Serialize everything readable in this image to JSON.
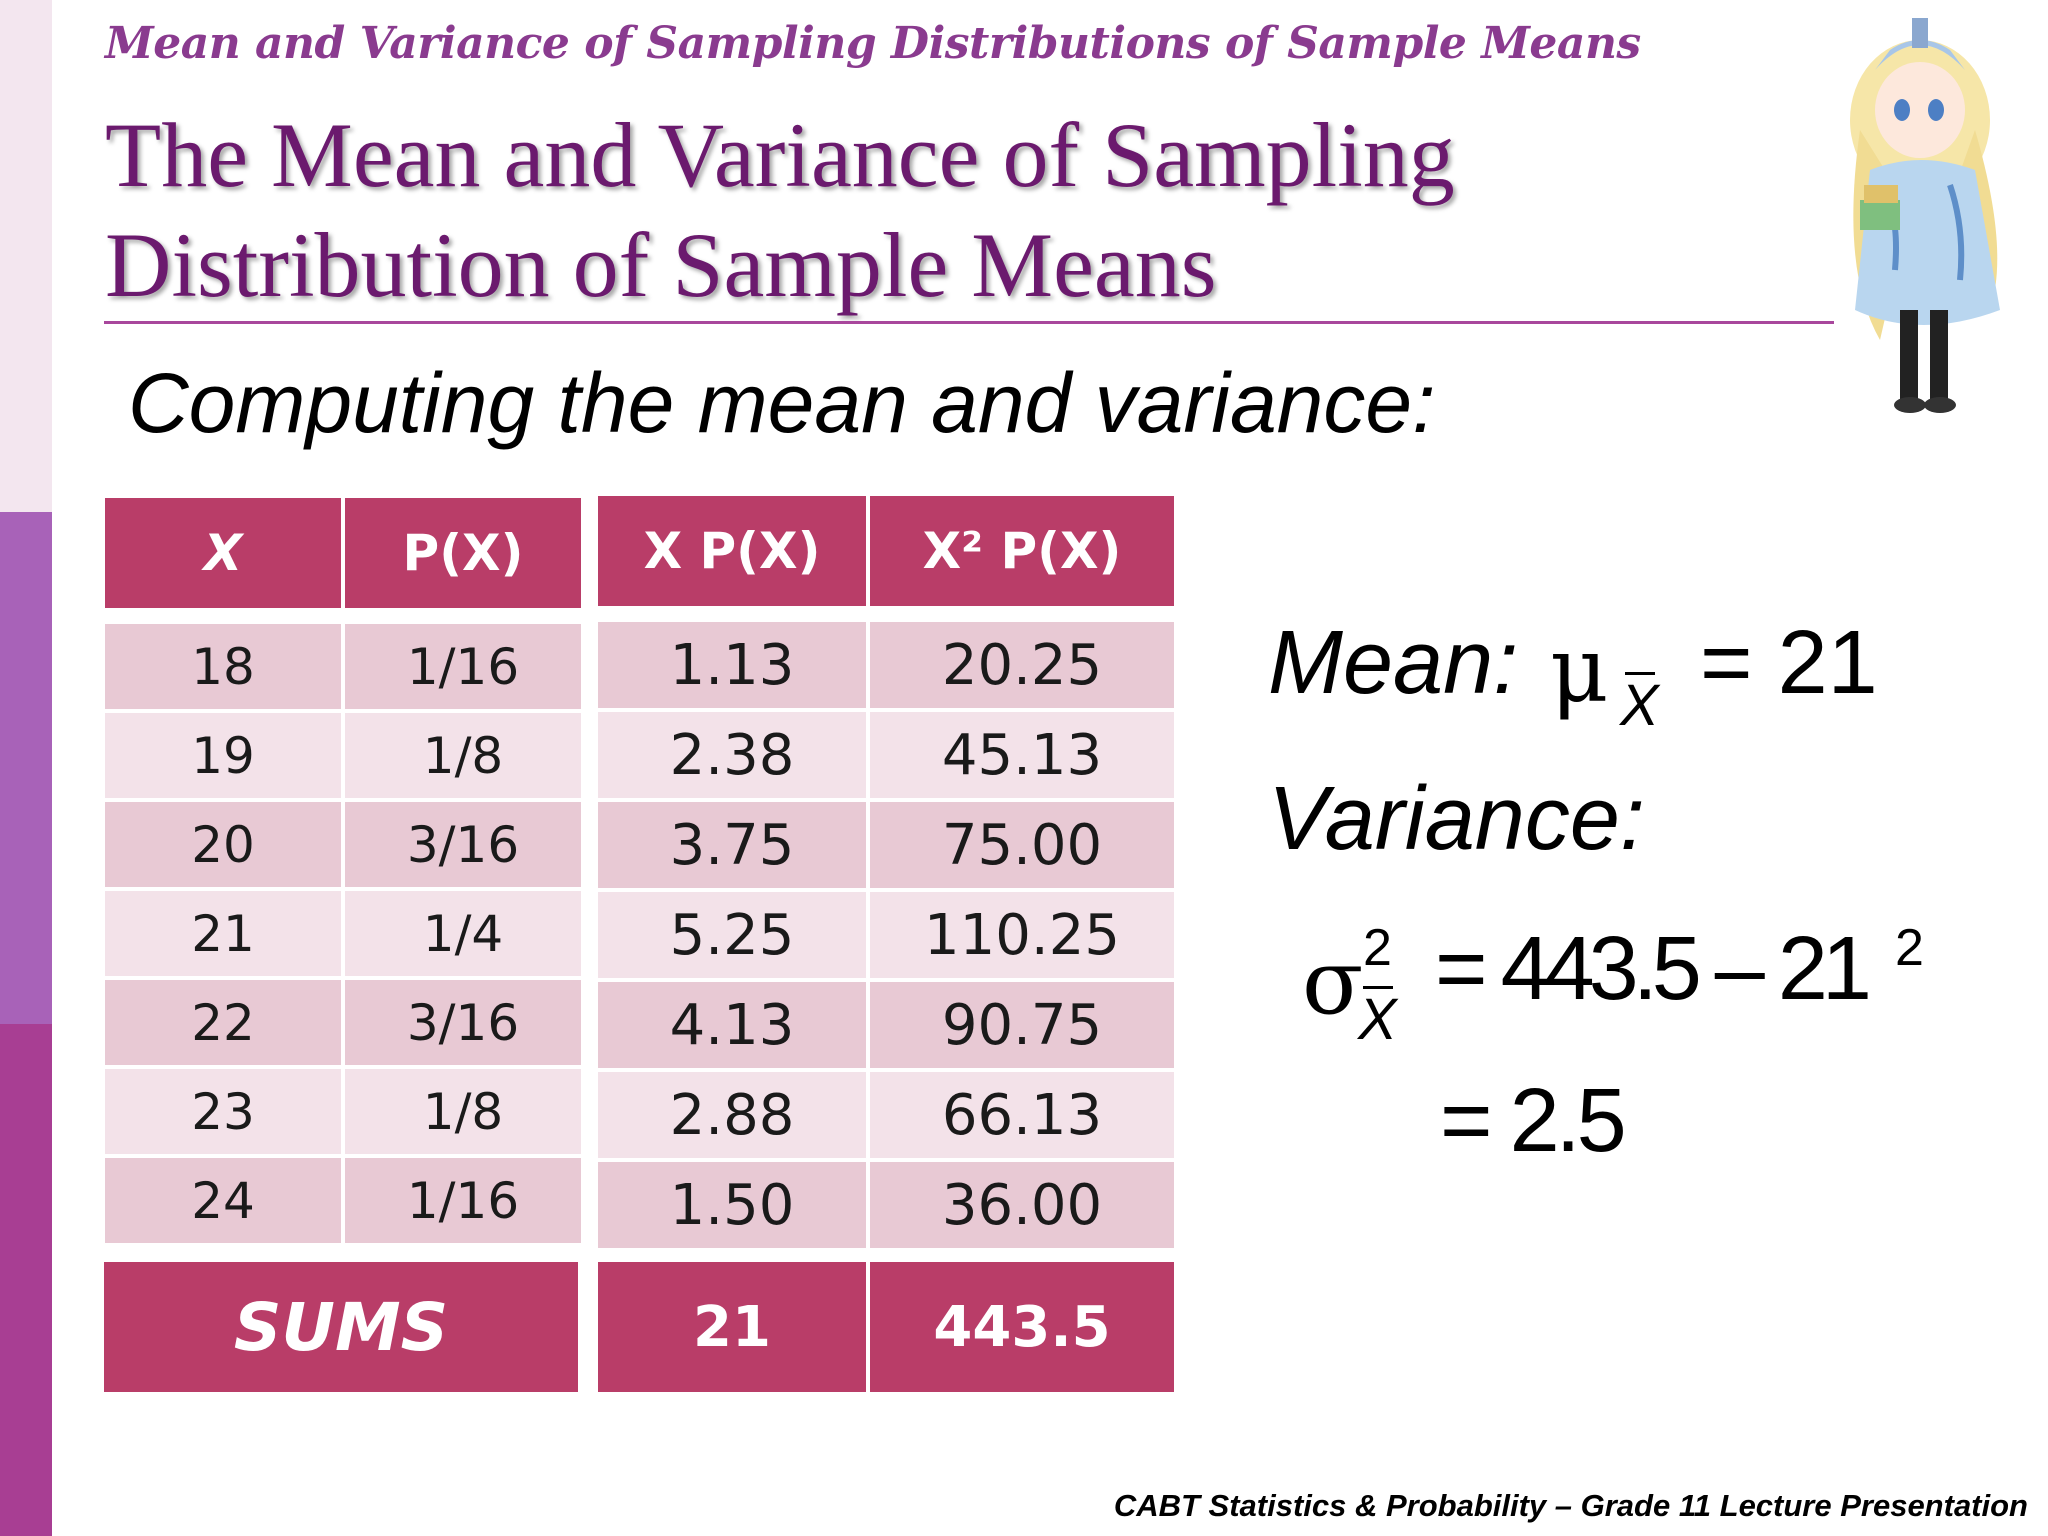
{
  "slide": {
    "section_title": "Mean and Variance of Sampling Distributions of Sample Means",
    "title_line1": "The Mean and Variance of Sampling",
    "title_line2": "Distribution of Sample Means",
    "subtitle": "Computing the mean and variance:",
    "footer": "CABT Statistics & Probability – Grade 11 Lecture Presentation"
  },
  "table_left": {
    "headers": [
      "X",
      "P(X)"
    ],
    "rows": [
      [
        "18",
        "1/16"
      ],
      [
        "19",
        "1/8"
      ],
      [
        "20",
        "3/16"
      ],
      [
        "21",
        "1/4"
      ],
      [
        "22",
        "3/16"
      ],
      [
        "23",
        "1/8"
      ],
      [
        "24",
        "1/16"
      ]
    ],
    "sums_label": "SUMS"
  },
  "table_right": {
    "headers": [
      "X P(X)",
      "X² P(X)"
    ],
    "rows": [
      [
        "1.13",
        "20.25"
      ],
      [
        "2.38",
        "45.13"
      ],
      [
        "3.75",
        "75.00"
      ],
      [
        "5.25",
        "110.25"
      ],
      [
        "4.13",
        "90.75"
      ],
      [
        "2.88",
        "66.13"
      ],
      [
        "1.50",
        "36.00"
      ]
    ],
    "sums": [
      "21",
      "443.5"
    ]
  },
  "formulas": {
    "mean_label": "Mean:",
    "mu_symbol": "μ",
    "x_sub": "X",
    "mean_equation": "= 21",
    "variance_label": "Variance:",
    "sigma_symbol": "σ",
    "sigma_sup": "2",
    "variance_equation": "= 443.5 – 21",
    "variance_sup": "2",
    "variance_result": "= 2.5"
  },
  "colors": {
    "header_fill": "#b93d68",
    "row_dark": "#e8c9d4",
    "row_light": "#f3e2e9",
    "title_purple": "#6b1a6e",
    "accent_strip": "#a862b8"
  },
  "icons": {
    "mascot": "anime-girl-mascot-icon"
  }
}
